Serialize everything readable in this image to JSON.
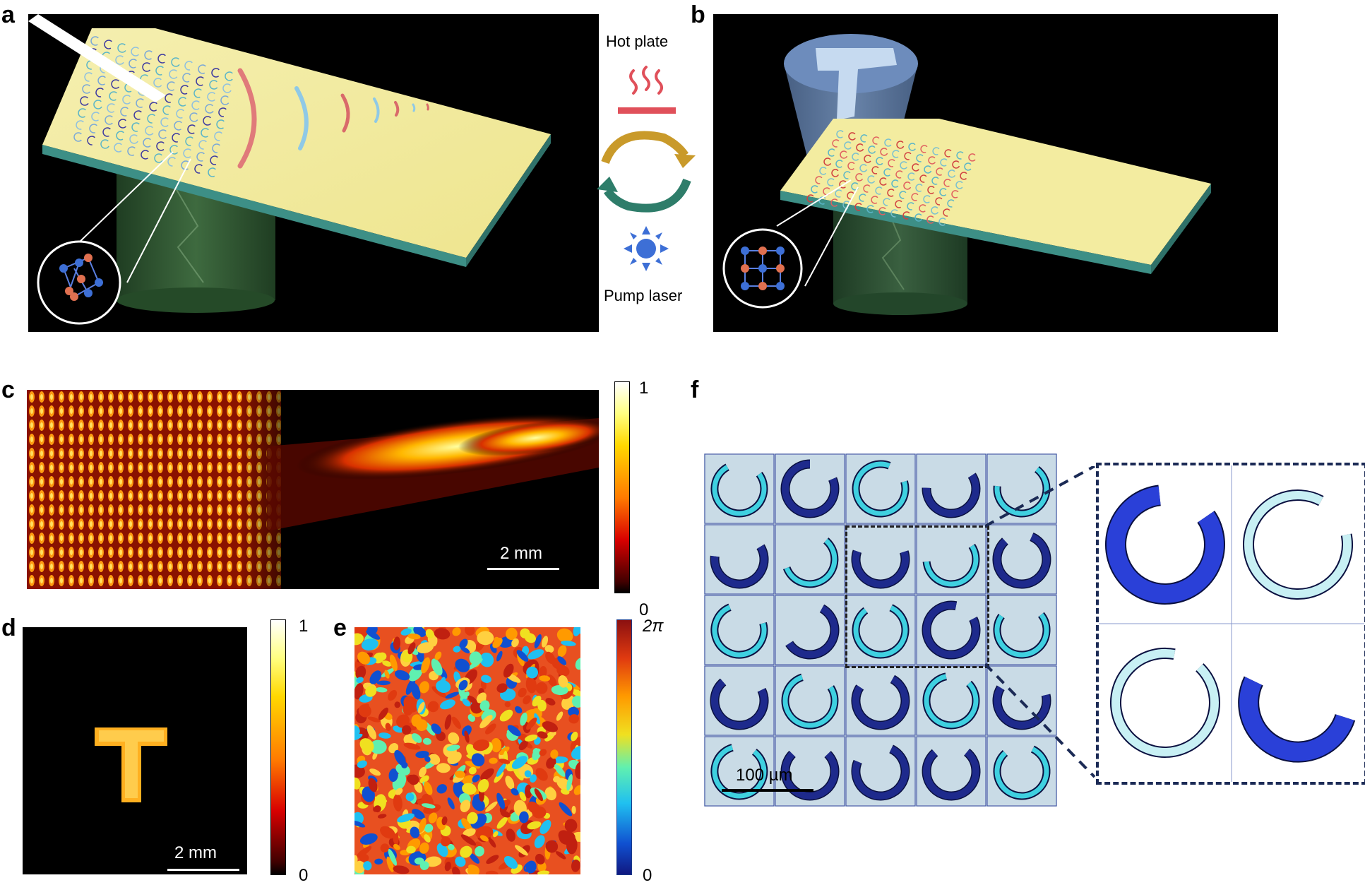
{
  "panels": {
    "a": {
      "label": "a"
    },
    "b": {
      "label": "b"
    },
    "c": {
      "label": "c",
      "scalebar": "2 mm",
      "colorbar": {
        "max": "1",
        "min": "0"
      }
    },
    "d": {
      "label": "d",
      "scalebar": "2 mm",
      "colorbar": {
        "max": "1",
        "min": "0"
      }
    },
    "e": {
      "label": "e",
      "colorbar": {
        "max": "2π",
        "min": "0"
      }
    },
    "f": {
      "label": "f",
      "scalebar": "100 µm"
    }
  },
  "cycle": {
    "top_label": "Hot plate",
    "bottom_label": "Pump laser"
  },
  "colors": {
    "slab_top": "#f3eca0",
    "slab_edge": "#3d8f86",
    "hot_red": "#e0505a",
    "laser_blue": "#3d6fd6",
    "ring_dark": "#1e2a8c",
    "ring_light": "#3fd0e0",
    "tile_bg": "#c7d9e3"
  },
  "grid_f": [
    [
      "light",
      "dark",
      "light",
      "dark",
      "light"
    ],
    [
      "dark",
      "light",
      "dark",
      "light",
      "dark"
    ],
    [
      "light",
      "dark",
      "light",
      "dark",
      "light"
    ],
    [
      "dark",
      "light",
      "dark",
      "light",
      "dark"
    ],
    [
      "light",
      "dark",
      "dark",
      "dark",
      "light"
    ]
  ]
}
